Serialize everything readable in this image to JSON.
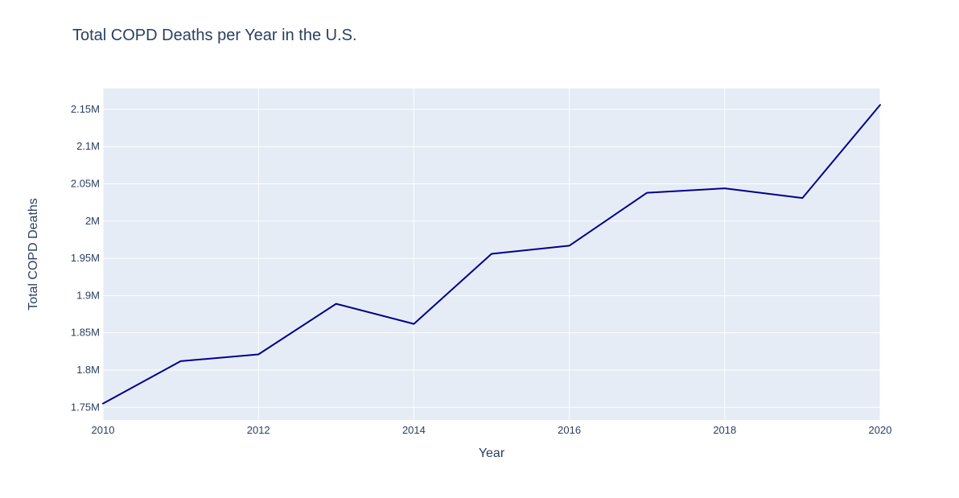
{
  "chart_data": {
    "type": "line",
    "title": "Total COPD Deaths per Year in the U.S.",
    "xlabel": "Year",
    "ylabel": "Total COPD Deaths",
    "x": [
      2010,
      2011,
      2012,
      2013,
      2014,
      2015,
      2016,
      2017,
      2018,
      2019,
      2020
    ],
    "series": [
      {
        "values": [
          1755000,
          1812000,
          1821000,
          1889000,
          1862000,
          1956000,
          1967000,
          2038000,
          2044000,
          2031000,
          2156000
        ],
        "color": "#00008b"
      }
    ],
    "xlim": [
      2010,
      2020
    ],
    "ylim": [
      1733000,
      2178000
    ],
    "x_ticks": [
      2010,
      2012,
      2014,
      2016,
      2018,
      2020
    ],
    "x_tick_labels": [
      "2010",
      "2012",
      "2014",
      "2016",
      "2018",
      "2020"
    ],
    "y_ticks": [
      1750000,
      1800000,
      1850000,
      1900000,
      1950000,
      2000000,
      2050000,
      2100000,
      2150000
    ],
    "y_tick_labels": [
      "1.75M",
      "1.8M",
      "1.85M",
      "1.9M",
      "1.95M",
      "2M",
      "2.05M",
      "2.1M",
      "2.15M"
    ],
    "grid": true,
    "plot_background": "#e5ecf6",
    "grid_color": "#ffffff"
  }
}
